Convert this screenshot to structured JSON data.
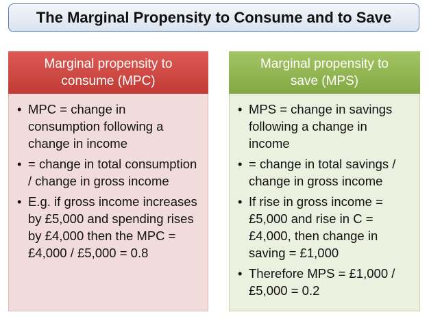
{
  "title": "The Marginal Propensity to Consume and to Save",
  "columns": [
    {
      "heading": "Marginal propensity to consume (MPC)",
      "bullets": [
        "MPC = change in consumption following a change in income",
        "= change in total consumption / change in gross income",
        "E.g. if gross income increases by £5,000 and spending rises by £4,000 then the MPC = £4,000 / £5,000 = 0.8"
      ]
    },
    {
      "heading": "Marginal propensity to save (MPS)",
      "bullets": [
        "MPS = change in savings following a change in income",
        "= change in total savings / change in gross income",
        "If rise in gross income = £5,000 and rise in C = £4,000, then change in saving = £1,000",
        "Therefore MPS = £1,000 / £5,000 = 0.2"
      ]
    }
  ]
}
